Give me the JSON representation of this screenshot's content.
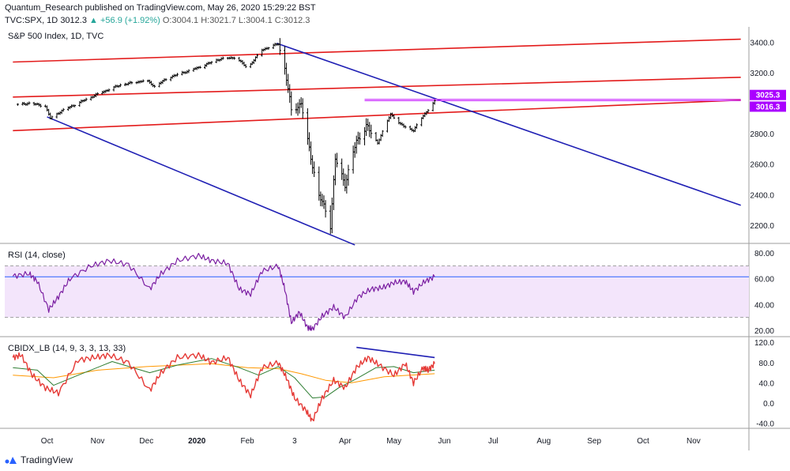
{
  "header": {
    "publisher_line": "Quantum_Research published on TradingView.com, May 26, 2020 15:29:22 BST",
    "symbol": "TVC:SPX, 1D",
    "last": "3012.3",
    "change": "▲ +56.9 (+1.92%)",
    "ohlc": "O:3004.1  H:3021.7  L:3004.1  C:3012.3"
  },
  "footer": {
    "brand": "TradingView"
  },
  "colors": {
    "price_bar": "#000000",
    "red_channel": "#e31b1b",
    "blue_trend": "#1f1fb4",
    "magenta_level": "#cc33ff",
    "rsi_line": "#7b1fa2",
    "rsi_band_fill": "#f3e5fb",
    "rsi_midline": "#2962ff",
    "cbi_main": "#e53935",
    "cbi_fast": "#2e7d32",
    "cbi_slow": "#ff9800",
    "label_bg": "#aa00ff"
  },
  "chart_data": [
    {
      "type": "bar",
      "title": "S&P 500 Index, 1D, TVC",
      "ylim": [
        2080,
        3480
      ],
      "y_ticks": [
        "3400.0",
        "3200.0",
        "2800.0",
        "2600.0",
        "2400.0",
        "2200.0"
      ],
      "price_labels": [
        "3025.3",
        "3016.3"
      ],
      "x_ticks": [
        "Oct",
        "Nov",
        "Dec",
        "2020",
        "Feb",
        "3",
        "Apr",
        "May",
        "Jun",
        "Jul",
        "Aug",
        "Sep",
        "Oct",
        "Nov"
      ],
      "close_path": [
        [
          "2019-09-13",
          2990
        ],
        [
          "2019-09-20",
          3000
        ],
        [
          "2019-09-30",
          2980
        ],
        [
          "2019-10-03",
          2900
        ],
        [
          "2019-10-10",
          2950
        ],
        [
          "2019-10-20",
          3000
        ],
        [
          "2019-11-01",
          3060
        ],
        [
          "2019-11-15",
          3120
        ],
        [
          "2019-12-01",
          3150
        ],
        [
          "2019-12-06",
          3110
        ],
        [
          "2019-12-15",
          3170
        ],
        [
          "2020-01-01",
          3230
        ],
        [
          "2020-01-15",
          3290
        ],
        [
          "2020-01-25",
          3300
        ],
        [
          "2020-02-01",
          3230
        ],
        [
          "2020-02-10",
          3350
        ],
        [
          "2020-02-20",
          3390
        ],
        [
          "2020-02-24",
          3230
        ],
        [
          "2020-02-28",
          2950
        ],
        [
          "2020-03-05",
          3000
        ],
        [
          "2020-03-09",
          2750
        ],
        [
          "2020-03-16",
          2390
        ],
        [
          "2020-03-20",
          2300
        ],
        [
          "2020-03-23",
          2200
        ],
        [
          "2020-03-26",
          2630
        ],
        [
          "2020-04-01",
          2470
        ],
        [
          "2020-04-08",
          2750
        ],
        [
          "2020-04-14",
          2850
        ],
        [
          "2020-04-21",
          2740
        ],
        [
          "2020-04-29",
          2930
        ],
        [
          "2020-05-05",
          2860
        ],
        [
          "2020-05-13",
          2820
        ],
        [
          "2020-05-19",
          2920
        ],
        [
          "2020-05-22",
          2955
        ],
        [
          "2020-05-26",
          3012
        ]
      ],
      "trendlines": [
        {
          "role": "red-upper",
          "x": [
            "2019-09-10",
            "2020-11-30"
          ],
          "y": [
            3270,
            3420
          ]
        },
        {
          "role": "red-middle",
          "x": [
            "2019-09-10",
            "2020-11-30"
          ],
          "y": [
            3040,
            3170
          ]
        },
        {
          "role": "red-lower",
          "x": [
            "2019-09-10",
            "2020-11-30"
          ],
          "y": [
            2820,
            3020
          ]
        },
        {
          "role": "blue-top",
          "x": [
            "2020-02-19",
            "2020-11-30"
          ],
          "y": [
            3393,
            2330
          ]
        },
        {
          "role": "blue-bottom",
          "x": [
            "2019-10-01",
            "2020-04-07"
          ],
          "y": [
            2910,
            2070
          ]
        },
        {
          "role": "magenta",
          "x": [
            "2020-04-13",
            "2020-11-30"
          ],
          "y": [
            3025.3,
            3025.3
          ]
        },
        {
          "role": "magenta",
          "x": [
            "2020-04-13",
            "2020-11-30"
          ],
          "y": [
            3016.3,
            3016.3
          ]
        }
      ]
    },
    {
      "type": "line",
      "title": "RSI (14, close)",
      "ylim": [
        15,
        85
      ],
      "y_ticks": [
        "80.00",
        "60.00",
        "40.00",
        "20.00"
      ],
      "band": [
        30,
        70
      ],
      "midline": 61.5,
      "series": [
        {
          "points": [
            [
              "2019-09-10",
              62
            ],
            [
              "2019-09-20",
              64
            ],
            [
              "2019-09-25",
              58
            ],
            [
              "2019-10-02",
              36
            ],
            [
              "2019-10-08",
              46
            ],
            [
              "2019-10-15",
              60
            ],
            [
              "2019-10-28",
              70
            ],
            [
              "2019-11-08",
              74
            ],
            [
              "2019-11-20",
              71
            ],
            [
              "2019-12-03",
              52
            ],
            [
              "2019-12-10",
              64
            ],
            [
              "2019-12-20",
              74
            ],
            [
              "2020-01-02",
              78
            ],
            [
              "2020-01-10",
              74
            ],
            [
              "2020-01-20",
              72
            ],
            [
              "2020-01-27",
              52
            ],
            [
              "2020-02-03",
              48
            ],
            [
              "2020-02-10",
              66
            ],
            [
              "2020-02-20",
              70
            ],
            [
              "2020-02-24",
              52
            ],
            [
              "2020-02-28",
              26
            ],
            [
              "2020-03-04",
              34
            ],
            [
              "2020-03-09",
              22
            ],
            [
              "2020-03-12",
              21
            ],
            [
              "2020-03-18",
              31
            ],
            [
              "2020-03-25",
              38
            ],
            [
              "2020-04-01",
              30
            ],
            [
              "2020-04-09",
              46
            ],
            [
              "2020-04-17",
              52
            ],
            [
              "2020-04-24",
              53
            ],
            [
              "2020-05-01",
              57
            ],
            [
              "2020-05-08",
              58
            ],
            [
              "2020-05-13",
              50
            ],
            [
              "2020-05-20",
              58
            ],
            [
              "2020-05-26",
              61.5
            ]
          ]
        }
      ]
    },
    {
      "type": "line",
      "title": "CBIDX_LB (14, 9, 3, 3, 13, 33)",
      "ylim": [
        -50,
        125
      ],
      "y_ticks": [
        "120.0",
        "80.0",
        "40.0",
        "0.0",
        "-40.0"
      ],
      "series": [
        {
          "role": "main",
          "points": [
            [
              "2019-09-10",
              90
            ],
            [
              "2019-09-15",
              95
            ],
            [
              "2019-09-22",
              55
            ],
            [
              "2019-09-30",
              30
            ],
            [
              "2019-10-08",
              20
            ],
            [
              "2019-10-20",
              85
            ],
            [
              "2019-10-30",
              90
            ],
            [
              "2019-11-08",
              95
            ],
            [
              "2019-11-20",
              80
            ],
            [
              "2019-12-03",
              25
            ],
            [
              "2019-12-10",
              60
            ],
            [
              "2019-12-20",
              90
            ],
            [
              "2020-01-02",
              95
            ],
            [
              "2020-01-10",
              80
            ],
            [
              "2020-01-20",
              90
            ],
            [
              "2020-01-27",
              45
            ],
            [
              "2020-02-03",
              15
            ],
            [
              "2020-02-10",
              70
            ],
            [
              "2020-02-20",
              80
            ],
            [
              "2020-02-25",
              50
            ],
            [
              "2020-03-01",
              10
            ],
            [
              "2020-03-08",
              -15
            ],
            [
              "2020-03-12",
              -35
            ],
            [
              "2020-03-18",
              10
            ],
            [
              "2020-03-25",
              45
            ],
            [
              "2020-04-01",
              30
            ],
            [
              "2020-04-08",
              70
            ],
            [
              "2020-04-15",
              90
            ],
            [
              "2020-04-22",
              75
            ],
            [
              "2020-05-01",
              55
            ],
            [
              "2020-05-08",
              78
            ],
            [
              "2020-05-13",
              40
            ],
            [
              "2020-05-19",
              70
            ],
            [
              "2020-05-22",
              65
            ],
            [
              "2020-05-26",
              78
            ]
          ]
        },
        {
          "role": "fast",
          "points": [
            [
              "2019-09-10",
              70
            ],
            [
              "2019-09-25",
              65
            ],
            [
              "2019-10-05",
              35
            ],
            [
              "2019-10-20",
              55
            ],
            [
              "2019-11-10",
              82
            ],
            [
              "2019-12-03",
              60
            ],
            [
              "2019-12-20",
              75
            ],
            [
              "2020-01-10",
              88
            ],
            [
              "2020-01-27",
              70
            ],
            [
              "2020-02-08",
              55
            ],
            [
              "2020-02-20",
              72
            ],
            [
              "2020-03-01",
              50
            ],
            [
              "2020-03-12",
              10
            ],
            [
              "2020-03-20",
              12
            ],
            [
              "2020-03-28",
              30
            ],
            [
              "2020-04-08",
              48
            ],
            [
              "2020-04-20",
              70
            ],
            [
              "2020-05-01",
              72
            ],
            [
              "2020-05-13",
              60
            ],
            [
              "2020-05-26",
              65
            ]
          ]
        },
        {
          "role": "slow",
          "points": [
            [
              "2019-09-10",
              55
            ],
            [
              "2019-10-05",
              50
            ],
            [
              "2019-11-01",
              65
            ],
            [
              "2019-12-01",
              72
            ],
            [
              "2020-01-10",
              78
            ],
            [
              "2020-02-01",
              70
            ],
            [
              "2020-02-20",
              68
            ],
            [
              "2020-03-05",
              58
            ],
            [
              "2020-03-20",
              45
            ],
            [
              "2020-04-05",
              40
            ],
            [
              "2020-04-25",
              52
            ],
            [
              "2020-05-26",
              58
            ]
          ]
        }
      ],
      "annotation_line": {
        "x": [
          "2020-04-08",
          "2020-05-26"
        ],
        "y": [
          110,
          90
        ]
      }
    }
  ]
}
